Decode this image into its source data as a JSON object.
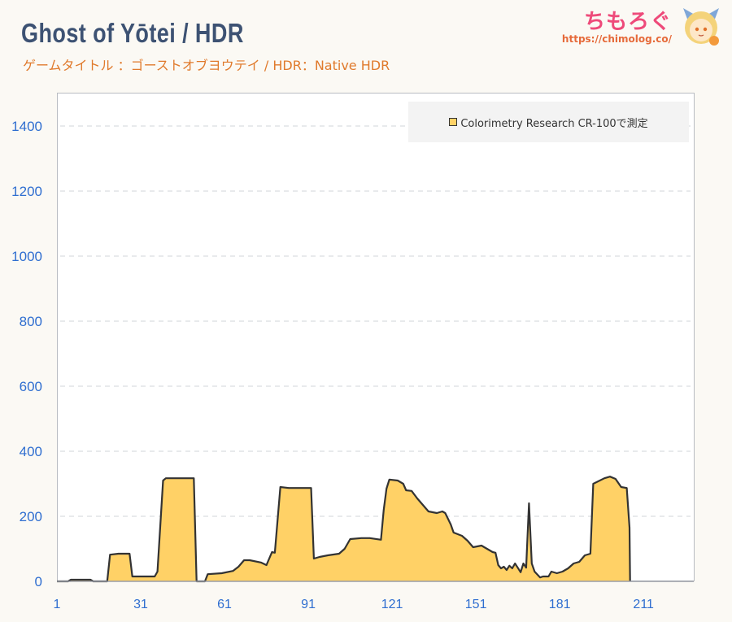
{
  "header": {
    "title": "Ghost of Yōtei / HDR",
    "subtitle": "ゲームタイトル ：ゴーストオブヨウテイ / HDR：Native HDR"
  },
  "logo": {
    "text": "ちもろぐ",
    "url": "https://chimolog.co/"
  },
  "colors": {
    "fill": "#ffd166",
    "line": "#333333",
    "tick": "#2f6ed0",
    "title": "#3d5273",
    "subtitle": "#e07a2c"
  },
  "chart_data": {
    "type": "area",
    "legend": "Colorimetry Research CR-100で測定",
    "legend_position": "top-right",
    "grid": "horizontal-dashed",
    "xlim": [
      1,
      229
    ],
    "ylim": [
      0,
      1500
    ],
    "xticks": [
      1,
      31,
      61,
      91,
      121,
      151,
      181,
      211
    ],
    "yticks": [
      0,
      200,
      400,
      600,
      800,
      1000,
      1200,
      1400
    ],
    "series": [
      {
        "points": [
          [
            1,
            0
          ],
          [
            5,
            0
          ],
          [
            6,
            5
          ],
          [
            13,
            5
          ],
          [
            14,
            0
          ],
          [
            19,
            0
          ],
          [
            20,
            82
          ],
          [
            23,
            85
          ],
          [
            27,
            85
          ],
          [
            28,
            15
          ],
          [
            36,
            15
          ],
          [
            37,
            30
          ],
          [
            39,
            310
          ],
          [
            40,
            317
          ],
          [
            50,
            317
          ],
          [
            51,
            0
          ],
          [
            54,
            0
          ],
          [
            55,
            22
          ],
          [
            60,
            25
          ],
          [
            64,
            32
          ],
          [
            66,
            45
          ],
          [
            68,
            65
          ],
          [
            70,
            65
          ],
          [
            74,
            58
          ],
          [
            76,
            50
          ],
          [
            78,
            90
          ],
          [
            79,
            88
          ],
          [
            81,
            290
          ],
          [
            84,
            287
          ],
          [
            92,
            287
          ],
          [
            93,
            70
          ],
          [
            95,
            75
          ],
          [
            98,
            80
          ],
          [
            102,
            85
          ],
          [
            104,
            100
          ],
          [
            106,
            130
          ],
          [
            110,
            133
          ],
          [
            113,
            133
          ],
          [
            117,
            128
          ],
          [
            118,
            220
          ],
          [
            119,
            285
          ],
          [
            120,
            313
          ],
          [
            123,
            310
          ],
          [
            125,
            300
          ],
          [
            126,
            280
          ],
          [
            128,
            278
          ],
          [
            130,
            255
          ],
          [
            134,
            215
          ],
          [
            137,
            210
          ],
          [
            139,
            215
          ],
          [
            140,
            210
          ],
          [
            142,
            175
          ],
          [
            143,
            150
          ],
          [
            146,
            140
          ],
          [
            148,
            125
          ],
          [
            150,
            105
          ],
          [
            153,
            110
          ],
          [
            154,
            105
          ],
          [
            157,
            90
          ],
          [
            158,
            88
          ],
          [
            159,
            50
          ],
          [
            160,
            40
          ],
          [
            161,
            45
          ],
          [
            162,
            35
          ],
          [
            163,
            48
          ],
          [
            164,
            40
          ],
          [
            165,
            55
          ],
          [
            166,
            42
          ],
          [
            167,
            28
          ],
          [
            168,
            55
          ],
          [
            169,
            42
          ],
          [
            170,
            240
          ],
          [
            171,
            55
          ],
          [
            172,
            30
          ],
          [
            174,
            12
          ],
          [
            175,
            15
          ],
          [
            177,
            15
          ],
          [
            178,
            30
          ],
          [
            180,
            25
          ],
          [
            182,
            30
          ],
          [
            184,
            40
          ],
          [
            186,
            55
          ],
          [
            188,
            60
          ],
          [
            190,
            80
          ],
          [
            192,
            85
          ],
          [
            193,
            300
          ],
          [
            197,
            317
          ],
          [
            199,
            322
          ],
          [
            201,
            315
          ],
          [
            203,
            290
          ],
          [
            205,
            287
          ],
          [
            206,
            165
          ],
          [
            206.2,
            0
          ]
        ]
      }
    ]
  }
}
